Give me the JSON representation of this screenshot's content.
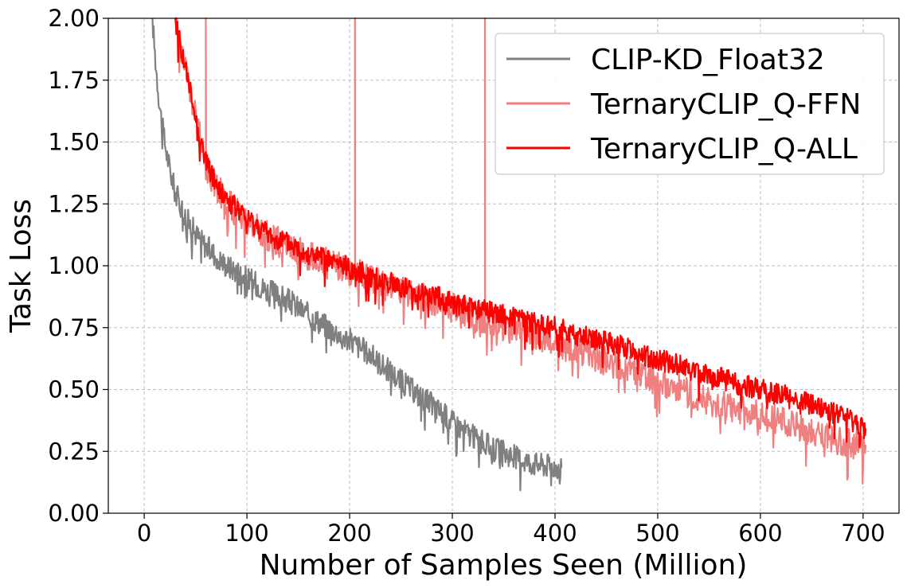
{
  "chart_data": {
    "type": "line",
    "title": "",
    "xlabel": "Number of Samples Seen (Million)",
    "ylabel": "Task Loss",
    "xlim": [
      -35,
      735
    ],
    "ylim": [
      0.0,
      2.0
    ],
    "xticks": [
      0,
      100,
      200,
      300,
      400,
      500,
      600,
      700
    ],
    "xtick_labels": [
      "0",
      "100",
      "200",
      "300",
      "400",
      "500",
      "600",
      "700"
    ],
    "yticks": [
      0.0,
      0.25,
      0.5,
      0.75,
      1.0,
      1.25,
      1.5,
      1.75,
      2.0
    ],
    "ytick_labels": [
      "0.00",
      "0.25",
      "0.50",
      "0.75",
      "1.00",
      "1.25",
      "1.50",
      "1.75",
      "2.00"
    ],
    "grid": true,
    "legend_position": "top-right",
    "series": [
      {
        "name": "CLIP-KD_Float32",
        "color": "#808080",
        "x": [
          8,
          10,
          12,
          15,
          18,
          22,
          26,
          30,
          35,
          40,
          50,
          60,
          70,
          80,
          90,
          100,
          120,
          140,
          160,
          180,
          200,
          220,
          240,
          260,
          280,
          300,
          320,
          340,
          360,
          380,
          400,
          407
        ],
        "y": [
          2.0,
          1.88,
          1.78,
          1.65,
          1.55,
          1.45,
          1.37,
          1.3,
          1.25,
          1.2,
          1.13,
          1.08,
          1.04,
          1.0,
          0.98,
          0.95,
          0.9,
          0.86,
          0.8,
          0.75,
          0.7,
          0.64,
          0.57,
          0.5,
          0.44,
          0.37,
          0.31,
          0.26,
          0.23,
          0.2,
          0.19,
          0.19
        ],
        "noise": 0.05,
        "spikes": []
      },
      {
        "name": "TernaryCLIP_Q-FFN",
        "color": "#f08080",
        "x": [
          30,
          35,
          40,
          50,
          60,
          70,
          80,
          90,
          100,
          120,
          140,
          160,
          180,
          200,
          220,
          240,
          260,
          280,
          300,
          320,
          340,
          360,
          380,
          400,
          420,
          440,
          460,
          480,
          500,
          520,
          540,
          560,
          580,
          600,
          620,
          640,
          660,
          680,
          700,
          703
        ],
        "y": [
          2.0,
          1.9,
          1.8,
          1.6,
          1.4,
          1.32,
          1.26,
          1.22,
          1.18,
          1.12,
          1.08,
          1.04,
          1.01,
          0.98,
          0.95,
          0.92,
          0.89,
          0.86,
          0.83,
          0.8,
          0.77,
          0.74,
          0.72,
          0.69,
          0.66,
          0.63,
          0.6,
          0.57,
          0.53,
          0.5,
          0.47,
          0.44,
          0.42,
          0.4,
          0.37,
          0.34,
          0.31,
          0.29,
          0.27,
          0.27
        ],
        "noise": 0.06,
        "spikes": [
          [
            60,
            2.0
          ],
          [
            205,
            2.0
          ],
          [
            332,
            2.0
          ]
        ]
      },
      {
        "name": "TernaryCLIP_Q-ALL",
        "color": "#ff0000",
        "x": [
          30,
          35,
          40,
          50,
          60,
          70,
          80,
          90,
          100,
          120,
          140,
          160,
          180,
          200,
          220,
          240,
          260,
          280,
          300,
          320,
          340,
          360,
          380,
          400,
          420,
          440,
          460,
          480,
          500,
          520,
          540,
          560,
          580,
          600,
          620,
          640,
          660,
          680,
          700,
          703
        ],
        "y": [
          2.0,
          1.9,
          1.8,
          1.6,
          1.42,
          1.33,
          1.27,
          1.23,
          1.19,
          1.13,
          1.09,
          1.05,
          1.02,
          0.99,
          0.96,
          0.93,
          0.9,
          0.88,
          0.85,
          0.83,
          0.81,
          0.79,
          0.77,
          0.75,
          0.72,
          0.7,
          0.68,
          0.65,
          0.62,
          0.6,
          0.57,
          0.55,
          0.52,
          0.5,
          0.48,
          0.45,
          0.42,
          0.39,
          0.35,
          0.34
        ],
        "noise": 0.045,
        "spikes": []
      }
    ]
  }
}
